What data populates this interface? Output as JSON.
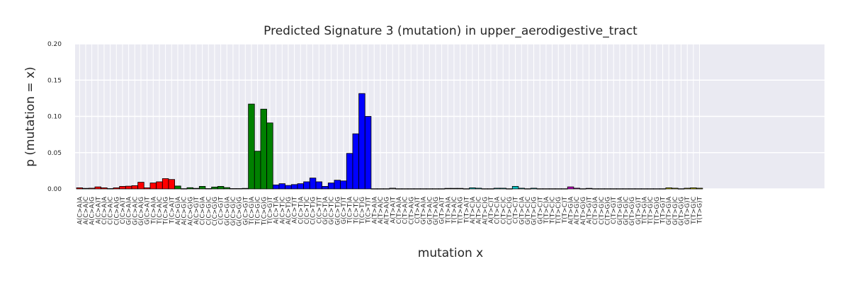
{
  "chart_data": {
    "type": "bar",
    "title": "Predicted Signature 3 (mutation) in upper_aerodigestive_tract",
    "xlabel": "mutation x",
    "ylabel": "p (mutation = x)",
    "ylim": [
      0,
      0.2
    ],
    "yticks": [
      "0.00",
      "0.05",
      "0.10",
      "0.15",
      "0.20"
    ],
    "grid": true,
    "legend": "none",
    "colors": {
      "C>A": "#ff0000",
      "C>G": "#008000",
      "C>T": "#0000ff",
      "T>A": "#7f7f7f",
      "T>C": "#00bfbf",
      "T>G": "#bf00bf",
      "extra": "#bfbf00",
      "background": "#eaeaf2",
      "grid": "#ffffff"
    },
    "groups": [
      "C>A",
      "C>A",
      "C>A",
      "C>A",
      "C>A",
      "C>A",
      "C>A",
      "C>A",
      "C>A",
      "C>A",
      "C>A",
      "C>A",
      "C>A",
      "C>A",
      "C>A",
      "C>A",
      "C>G",
      "C>G",
      "C>G",
      "C>G",
      "C>G",
      "C>G",
      "C>G",
      "C>G",
      "C>G",
      "C>G",
      "C>G",
      "C>G",
      "C>G",
      "C>G",
      "C>G",
      "C>G",
      "C>T",
      "C>T",
      "C>T",
      "C>T",
      "C>T",
      "C>T",
      "C>T",
      "C>T",
      "C>T",
      "C>T",
      "C>T",
      "C>T",
      "C>T",
      "C>T",
      "C>T",
      "C>T",
      "T>A",
      "T>A",
      "T>A",
      "T>A",
      "T>A",
      "T>A",
      "T>A",
      "T>A",
      "T>A",
      "T>A",
      "T>A",
      "T>A",
      "T>A",
      "T>A",
      "T>A",
      "T>A",
      "T>C",
      "T>C",
      "T>C",
      "T>C",
      "T>C",
      "T>C",
      "T>C",
      "T>C",
      "T>C",
      "T>C",
      "T>C",
      "T>C",
      "T>C",
      "T>C",
      "T>C",
      "T>C",
      "T>G",
      "T>G",
      "T>G",
      "T>G",
      "T>G",
      "T>G",
      "T>G",
      "T>G",
      "T>G",
      "T>G",
      "T>G",
      "T>G",
      "T>G",
      "T>G",
      "T>G",
      "T>G",
      "extra",
      "extra",
      "extra",
      "extra",
      "extra",
      "extra"
    ],
    "categories": [
      "A(C>A)A",
      "A(C>A)C",
      "A(C>A)G",
      "A(C>A)T",
      "C(C>A)A",
      "C(C>A)C",
      "C(C>A)G",
      "C(C>A)T",
      "G(C>A)A",
      "G(C>A)C",
      "G(C>A)G",
      "G(C>A)T",
      "T(C>A)A",
      "T(C>A)C",
      "T(C>A)G",
      "T(C>A)T",
      "A(C>G)A",
      "A(C>G)C",
      "A(C>G)G",
      "A(C>G)T",
      "C(C>G)A",
      "C(C>G)C",
      "C(C>G)G",
      "C(C>G)T",
      "G(C>G)A",
      "G(C>G)C",
      "G(C>G)G",
      "G(C>G)T",
      "T(C>G)A",
      "T(C>G)C",
      "T(C>G)G",
      "T(C>G)T",
      "A(C>T)A",
      "A(C>T)C",
      "A(C>T)G",
      "A(C>T)T",
      "C(C>T)A",
      "C(C>T)C",
      "C(C>T)G",
      "C(C>T)T",
      "G(C>T)A",
      "G(C>T)C",
      "G(C>T)G",
      "G(C>T)T",
      "T(C>T)A",
      "T(C>T)C",
      "T(C>T)G",
      "T(C>T)T",
      "A(T>A)A",
      "A(T>A)C",
      "A(T>A)G",
      "A(T>A)T",
      "C(T>A)A",
      "C(T>A)C",
      "C(T>A)G",
      "C(T>A)T",
      "G(T>A)A",
      "G(T>A)C",
      "G(T>A)G",
      "G(T>A)T",
      "T(T>A)A",
      "T(T>A)C",
      "T(T>A)G",
      "T(T>A)T",
      "A(T>C)A",
      "A(T>C)C",
      "A(T>C)G",
      "A(T>C)T",
      "C(T>C)A",
      "C(T>C)C",
      "C(T>C)G",
      "C(T>C)T",
      "G(T>C)A",
      "G(T>C)C",
      "G(T>C)G",
      "G(T>C)T",
      "T(T>C)A",
      "T(T>C)C",
      "T(T>C)G",
      "T(T>C)T",
      "A(T>G)A",
      "A(T>G)C",
      "A(T>G)G",
      "A(T>G)T",
      "C(T>G)A",
      "C(T>G)C",
      "C(T>G)G",
      "C(T>G)T",
      "G(T>G)A",
      "G(T>G)C",
      "G(T>G)G",
      "G(T>G)T",
      "T(T>G)A",
      "T(T>G)C",
      "T(T>G)G",
      "T(T>G)T",
      "G(T>G)A",
      "G(T>G)C",
      "G(T>G)G",
      "G(T>G)T",
      "T(T>G)C",
      "T(T>G)T"
    ],
    "values": [
      0.0015,
      0.0008,
      0.001,
      0.0028,
      0.0015,
      0.0005,
      0.0015,
      0.0035,
      0.0038,
      0.0045,
      0.0092,
      0.0015,
      0.0082,
      0.0098,
      0.0142,
      0.013,
      0.004,
      0.0004,
      0.0017,
      0.0008,
      0.0035,
      0.0005,
      0.0026,
      0.0035,
      0.0018,
      0.0005,
      0.0005,
      0.0008,
      0.117,
      0.052,
      0.11,
      0.091,
      0.0055,
      0.0072,
      0.0048,
      0.006,
      0.0072,
      0.0098,
      0.015,
      0.0098,
      0.0035,
      0.0082,
      0.012,
      0.011,
      0.049,
      0.076,
      0.1315,
      0.1,
      0.0003,
      0.0003,
      0.0003,
      0.001,
      0.0003,
      0.0003,
      0.0003,
      0.0003,
      0.0003,
      0.0003,
      0.0003,
      0.0003,
      0.0008,
      0.0008,
      0.0008,
      0.0003,
      0.0015,
      0.001,
      0.0003,
      0.0003,
      0.001,
      0.001,
      0.0003,
      0.0035,
      0.001,
      0.0003,
      0.001,
      0.0003,
      0.0003,
      0.0003,
      0.0003,
      0.0003,
      0.0028,
      0.001,
      0.0003,
      0.0008,
      0.0003,
      0.0003,
      0.0003,
      0.0003,
      0.0003,
      0.0003,
      0.0003,
      0.0003,
      0.0003,
      0.0003,
      0.0003,
      0.0003,
      0.0015,
      0.001,
      0.0003,
      0.001,
      0.0015,
      0.001
    ]
  }
}
